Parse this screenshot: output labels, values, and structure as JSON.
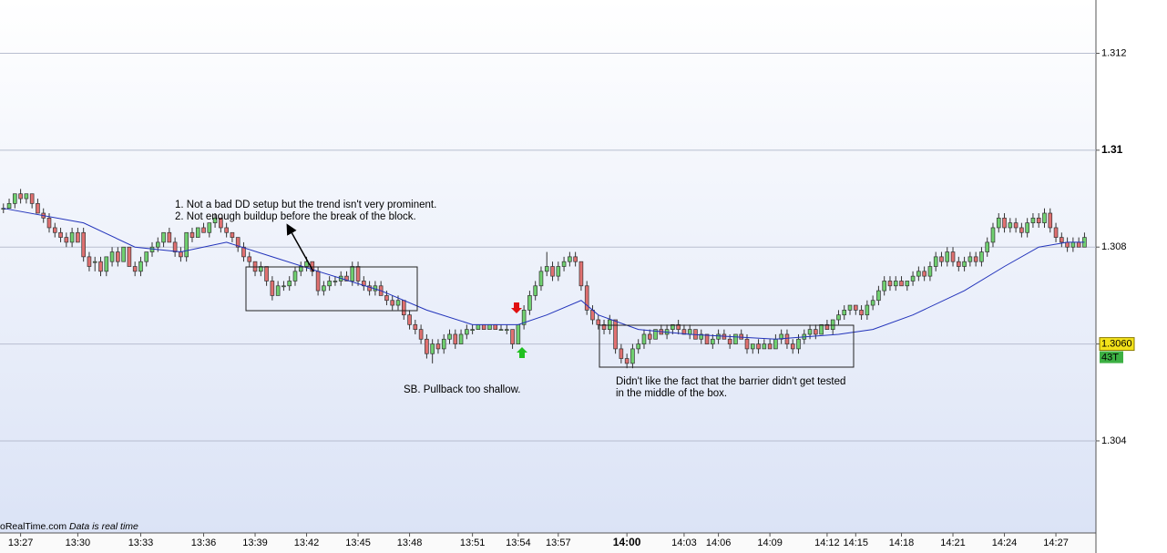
{
  "chart_data": {
    "type": "candlestick",
    "bar_type": "43T",
    "source": "oRealTime.com",
    "source_note": "Data is real time",
    "price_marker": {
      "value": 1.306,
      "label": "1.3060"
    },
    "annotations": [
      "1. Not a bad DD setup but the trend isn't very prominent.",
      "2. Not enough buildup before the break of the block.",
      "SB. Pullback too shallow.",
      "Didn't like the fact that the barrier didn't get tested",
      "in the middle of the box."
    ],
    "up_color": "#70d070",
    "down_color": "#e07070",
    "wick_color": "#333333",
    "xlim": [
      -0.6,
      191
    ],
    "ylim": [
      1.3021,
      1.3131
    ],
    "yticks": [
      1.304,
      1.306,
      1.308,
      1.31,
      1.312
    ],
    "grid": true,
    "xticks": [
      {
        "value": 3,
        "label": "13:27"
      },
      {
        "value": 13,
        "label": "13:30"
      },
      {
        "value": 24,
        "label": "13:33"
      },
      {
        "value": 35,
        "label": "13:36"
      },
      {
        "value": 44,
        "label": "13:39"
      },
      {
        "value": 53,
        "label": "13:42"
      },
      {
        "value": 62,
        "label": "13:45"
      },
      {
        "value": 71,
        "label": "13:48"
      },
      {
        "value": 82,
        "label": "13:51"
      },
      {
        "value": 90,
        "label": "13:54"
      },
      {
        "value": 97,
        "label": "13:57"
      },
      {
        "value": 109,
        "label": "14:00"
      },
      {
        "value": 119,
        "label": "14:03"
      },
      {
        "value": 125,
        "label": "14:06"
      },
      {
        "value": 134,
        "label": "14:09"
      },
      {
        "value": 144,
        "label": "14:12"
      },
      {
        "value": 149,
        "label": "14:15"
      },
      {
        "value": 157,
        "label": "14:18"
      },
      {
        "value": 166,
        "label": "14:21"
      },
      {
        "value": 175,
        "label": "14:24"
      },
      {
        "value": 184,
        "label": "14:27"
      }
    ],
    "ohlc": [
      [
        1.3088,
        1.3089,
        1.3087,
        1.3088
      ],
      [
        1.3088,
        1.309,
        1.3088,
        1.3089
      ],
      [
        1.3089,
        1.3091,
        1.3088,
        1.3091
      ],
      [
        1.3091,
        1.3092,
        1.3089,
        1.309
      ],
      [
        1.309,
        1.3091,
        1.3089,
        1.3091
      ],
      [
        1.3091,
        1.3091,
        1.3088,
        1.3089
      ],
      [
        1.3089,
        1.309,
        1.3087,
        1.3087
      ],
      [
        1.3087,
        1.3088,
        1.3085,
        1.3086
      ],
      [
        1.3086,
        1.3087,
        1.3083,
        1.3084
      ],
      [
        1.3084,
        1.3085,
        1.3082,
        1.3083
      ],
      [
        1.3083,
        1.3084,
        1.3081,
        1.3082
      ],
      [
        1.3082,
        1.3083,
        1.308,
        1.3081
      ],
      [
        1.3081,
        1.3084,
        1.308,
        1.3083
      ],
      [
        1.3083,
        1.3084,
        1.3081,
        1.3081
      ],
      [
        1.3083,
        1.3084,
        1.3077,
        1.3078
      ],
      [
        1.3078,
        1.3079,
        1.3075,
        1.3076
      ],
      [
        1.3077,
        1.3078,
        1.3075,
        1.3077
      ],
      [
        1.3077,
        1.3078,
        1.3074,
        1.3075
      ],
      [
        1.3075,
        1.3078,
        1.3074,
        1.3078
      ],
      [
        1.3077,
        1.308,
        1.3076,
        1.3079
      ],
      [
        1.3079,
        1.308,
        1.3076,
        1.3077
      ],
      [
        1.3077,
        1.308,
        1.3077,
        1.308
      ],
      [
        1.308,
        1.308,
        1.3076,
        1.3076
      ],
      [
        1.3076,
        1.3077,
        1.3074,
        1.3075
      ],
      [
        1.3075,
        1.3078,
        1.3074,
        1.3077
      ],
      [
        1.3077,
        1.3079,
        1.3076,
        1.3079
      ],
      [
        1.3079,
        1.3081,
        1.3078,
        1.308
      ],
      [
        1.308,
        1.3082,
        1.3079,
        1.3081
      ],
      [
        1.3081,
        1.3083,
        1.308,
        1.3083
      ],
      [
        1.3083,
        1.3084,
        1.3081,
        1.3081
      ],
      [
        1.3081,
        1.3082,
        1.3078,
        1.3079
      ],
      [
        1.3079,
        1.308,
        1.3077,
        1.3078
      ],
      [
        1.3078,
        1.3083,
        1.3077,
        1.3083
      ],
      [
        1.3083,
        1.3084,
        1.3081,
        1.3082
      ],
      [
        1.3082,
        1.3084,
        1.3082,
        1.3084
      ],
      [
        1.3084,
        1.3085,
        1.3083,
        1.3083
      ],
      [
        1.3083,
        1.3085,
        1.3082,
        1.3085
      ],
      [
        1.3085,
        1.3087,
        1.3084,
        1.3086
      ],
      [
        1.3086,
        1.3086,
        1.3083,
        1.3084
      ],
      [
        1.3084,
        1.3085,
        1.3082,
        1.3083
      ],
      [
        1.3083,
        1.3083,
        1.3081,
        1.3082
      ],
      [
        1.3082,
        1.3082,
        1.3079,
        1.308
      ],
      [
        1.308,
        1.3081,
        1.3077,
        1.3078
      ],
      [
        1.3078,
        1.3079,
        1.3076,
        1.3077
      ],
      [
        1.3077,
        1.3077,
        1.3074,
        1.3075
      ],
      [
        1.3075,
        1.3077,
        1.3074,
        1.3076
      ],
      [
        1.3076,
        1.3076,
        1.3072,
        1.3073
      ],
      [
        1.3073,
        1.3074,
        1.3069,
        1.307
      ],
      [
        1.307,
        1.3073,
        1.307,
        1.3072
      ],
      [
        1.3072,
        1.3073,
        1.3071,
        1.3072
      ],
      [
        1.3072,
        1.3074,
        1.3071,
        1.3073
      ],
      [
        1.3073,
        1.3076,
        1.3072,
        1.3075
      ],
      [
        1.3075,
        1.3077,
        1.3074,
        1.3076
      ],
      [
        1.3076,
        1.3078,
        1.3075,
        1.3077
      ],
      [
        1.3077,
        1.3077,
        1.3074,
        1.3075
      ],
      [
        1.3075,
        1.3076,
        1.307,
        1.3071
      ],
      [
        1.3071,
        1.3073,
        1.307,
        1.3072
      ],
      [
        1.3072,
        1.3074,
        1.3071,
        1.3073
      ],
      [
        1.3073,
        1.3074,
        1.3072,
        1.3073
      ],
      [
        1.3073,
        1.3075,
        1.3072,
        1.3074
      ],
      [
        1.3074,
        1.3075,
        1.3073,
        1.3073
      ],
      [
        1.3073,
        1.3077,
        1.3072,
        1.3076
      ],
      [
        1.3076,
        1.3077,
        1.3072,
        1.3073
      ],
      [
        1.3073,
        1.3074,
        1.3071,
        1.3072
      ],
      [
        1.3072,
        1.3073,
        1.307,
        1.3071
      ],
      [
        1.3071,
        1.3073,
        1.307,
        1.3072
      ],
      [
        1.3072,
        1.3073,
        1.307,
        1.307
      ],
      [
        1.307,
        1.3071,
        1.3068,
        1.3069
      ],
      [
        1.3069,
        1.307,
        1.3067,
        1.3068
      ],
      [
        1.3068,
        1.307,
        1.3067,
        1.3069
      ],
      [
        1.3069,
        1.3069,
        1.3065,
        1.3066
      ],
      [
        1.3066,
        1.3067,
        1.3063,
        1.3064
      ],
      [
        1.3064,
        1.3065,
        1.3062,
        1.3063
      ],
      [
        1.3063,
        1.3064,
        1.306,
        1.3061
      ],
      [
        1.3061,
        1.3062,
        1.3057,
        1.3058
      ],
      [
        1.3058,
        1.3061,
        1.3056,
        1.306
      ],
      [
        1.306,
        1.3061,
        1.3058,
        1.3059
      ],
      [
        1.3059,
        1.3062,
        1.3058,
        1.3061
      ],
      [
        1.3061,
        1.3063,
        1.306,
        1.3062
      ],
      [
        1.3062,
        1.3063,
        1.3059,
        1.306
      ],
      [
        1.306,
        1.3063,
        1.306,
        1.3062
      ],
      [
        1.3062,
        1.3064,
        1.3061,
        1.3063
      ],
      [
        1.3063,
        1.3064,
        1.3062,
        1.3063
      ],
      [
        1.3063,
        1.3064,
        1.3063,
        1.3064
      ],
      [
        1.3064,
        1.3064,
        1.3063,
        1.3063
      ],
      [
        1.3063,
        1.3064,
        1.3063,
        1.3064
      ],
      [
        1.3064,
        1.3064,
        1.3063,
        1.3063
      ],
      [
        1.3063,
        1.3064,
        1.3063,
        1.3063
      ],
      [
        1.3063,
        1.3064,
        1.3062,
        1.3063
      ],
      [
        1.3063,
        1.3063,
        1.3059,
        1.306
      ],
      [
        1.306,
        1.3064,
        1.306,
        1.3064
      ],
      [
        1.3064,
        1.3068,
        1.3063,
        1.3067
      ],
      [
        1.3067,
        1.3071,
        1.3066,
        1.307
      ],
      [
        1.307,
        1.3073,
        1.3069,
        1.3072
      ],
      [
        1.3072,
        1.3076,
        1.3071,
        1.3075
      ],
      [
        1.3075,
        1.3079,
        1.3074,
        1.3076
      ],
      [
        1.3076,
        1.3077,
        1.3073,
        1.3074
      ],
      [
        1.3074,
        1.3077,
        1.3073,
        1.3076
      ],
      [
        1.3076,
        1.3078,
        1.3075,
        1.3077
      ],
      [
        1.3077,
        1.3079,
        1.3076,
        1.3078
      ],
      [
        1.3078,
        1.3079,
        1.3076,
        1.3077
      ],
      [
        1.3077,
        1.3077,
        1.3071,
        1.3072
      ],
      [
        1.3072,
        1.3073,
        1.3066,
        1.3067
      ],
      [
        1.3067,
        1.3068,
        1.3064,
        1.3065
      ],
      [
        1.3065,
        1.3066,
        1.3063,
        1.3064
      ],
      [
        1.3064,
        1.3065,
        1.3062,
        1.3063
      ],
      [
        1.3063,
        1.3066,
        1.3062,
        1.3065
      ],
      [
        1.3065,
        1.3065,
        1.3058,
        1.3059
      ],
      [
        1.3059,
        1.306,
        1.3056,
        1.3057
      ],
      [
        1.3057,
        1.3058,
        1.3055,
        1.3056
      ],
      [
        1.3056,
        1.306,
        1.3055,
        1.3059
      ],
      [
        1.3059,
        1.3061,
        1.3058,
        1.306
      ],
      [
        1.306,
        1.3063,
        1.3059,
        1.3062
      ],
      [
        1.3062,
        1.3063,
        1.306,
        1.3061
      ],
      [
        1.3061,
        1.3063,
        1.3061,
        1.3063
      ],
      [
        1.3063,
        1.3064,
        1.3062,
        1.3062
      ],
      [
        1.3062,
        1.3064,
        1.3061,
        1.3063
      ],
      [
        1.3063,
        1.3064,
        1.3062,
        1.3064
      ],
      [
        1.3064,
        1.3065,
        1.3062,
        1.3063
      ],
      [
        1.3063,
        1.3064,
        1.3062,
        1.3062
      ],
      [
        1.3062,
        1.3064,
        1.3061,
        1.3063
      ],
      [
        1.3063,
        1.3063,
        1.3061,
        1.3061
      ],
      [
        1.3061,
        1.3063,
        1.306,
        1.3062
      ],
      [
        1.3062,
        1.3062,
        1.306,
        1.306
      ],
      [
        1.306,
        1.3062,
        1.3059,
        1.3061
      ],
      [
        1.3061,
        1.3063,
        1.306,
        1.3062
      ],
      [
        1.3062,
        1.3063,
        1.3061,
        1.3061
      ],
      [
        1.3061,
        1.3062,
        1.3059,
        1.306
      ],
      [
        1.306,
        1.3062,
        1.306,
        1.3062
      ],
      [
        1.3062,
        1.3063,
        1.3061,
        1.3061
      ],
      [
        1.3061,
        1.3062,
        1.3058,
        1.3059
      ],
      [
        1.3059,
        1.306,
        1.3058,
        1.306
      ],
      [
        1.306,
        1.3061,
        1.3058,
        1.3059
      ],
      [
        1.3059,
        1.3061,
        1.3059,
        1.306
      ],
      [
        1.306,
        1.3061,
        1.3059,
        1.3059
      ],
      [
        1.3059,
        1.3062,
        1.3059,
        1.3061
      ],
      [
        1.3061,
        1.3063,
        1.306,
        1.3062
      ],
      [
        1.3062,
        1.3063,
        1.3059,
        1.306
      ],
      [
        1.306,
        1.3061,
        1.3058,
        1.3059
      ],
      [
        1.3059,
        1.3062,
        1.3058,
        1.3061
      ],
      [
        1.3061,
        1.3063,
        1.306,
        1.3062
      ],
      [
        1.3062,
        1.3064,
        1.3061,
        1.3063
      ],
      [
        1.3063,
        1.3064,
        1.3061,
        1.3062
      ],
      [
        1.3062,
        1.3064,
        1.3062,
        1.3064
      ],
      [
        1.3064,
        1.3065,
        1.3063,
        1.3063
      ],
      [
        1.3063,
        1.3065,
        1.3062,
        1.3065
      ],
      [
        1.3065,
        1.3067,
        1.3064,
        1.3066
      ],
      [
        1.3066,
        1.3068,
        1.3065,
        1.3067
      ],
      [
        1.3067,
        1.3068,
        1.3066,
        1.3068
      ],
      [
        1.3068,
        1.3068,
        1.3066,
        1.3067
      ],
      [
        1.3067,
        1.3068,
        1.3065,
        1.3066
      ],
      [
        1.3066,
        1.3069,
        1.3065,
        1.3068
      ],
      [
        1.3068,
        1.307,
        1.3067,
        1.3069
      ],
      [
        1.3069,
        1.3072,
        1.3068,
        1.3071
      ],
      [
        1.3071,
        1.3074,
        1.307,
        1.3073
      ],
      [
        1.3073,
        1.3074,
        1.3071,
        1.3072
      ],
      [
        1.3072,
        1.3074,
        1.3071,
        1.3073
      ],
      [
        1.3073,
        1.3074,
        1.3072,
        1.3072
      ],
      [
        1.3072,
        1.3073,
        1.3071,
        1.3073
      ],
      [
        1.3073,
        1.3075,
        1.3072,
        1.3074
      ],
      [
        1.3074,
        1.3076,
        1.3073,
        1.3075
      ],
      [
        1.3075,
        1.3076,
        1.3073,
        1.3074
      ],
      [
        1.3074,
        1.3077,
        1.3073,
        1.3076
      ],
      [
        1.3076,
        1.3079,
        1.3075,
        1.3078
      ],
      [
        1.3078,
        1.3079,
        1.3076,
        1.3077
      ],
      [
        1.3077,
        1.308,
        1.3076,
        1.3079
      ],
      [
        1.3079,
        1.308,
        1.3076,
        1.3077
      ],
      [
        1.3077,
        1.3078,
        1.3075,
        1.3076
      ],
      [
        1.3076,
        1.3078,
        1.3075,
        1.3077
      ],
      [
        1.3077,
        1.3079,
        1.3076,
        1.3078
      ],
      [
        1.3078,
        1.3079,
        1.3076,
        1.3077
      ],
      [
        1.3077,
        1.308,
        1.3076,
        1.3079
      ],
      [
        1.3079,
        1.3082,
        1.3078,
        1.3081
      ],
      [
        1.3081,
        1.3085,
        1.308,
        1.3084
      ],
      [
        1.3084,
        1.3087,
        1.3083,
        1.3086
      ],
      [
        1.3086,
        1.3087,
        1.3083,
        1.3084
      ],
      [
        1.3084,
        1.3086,
        1.3083,
        1.3085
      ],
      [
        1.3085,
        1.3086,
        1.3083,
        1.3084
      ],
      [
        1.3084,
        1.3085,
        1.3082,
        1.3083
      ],
      [
        1.3083,
        1.3086,
        1.3082,
        1.3085
      ],
      [
        1.3085,
        1.3087,
        1.3084,
        1.3086
      ],
      [
        1.3086,
        1.3087,
        1.3084,
        1.3085
      ],
      [
        1.3085,
        1.3088,
        1.3084,
        1.3087
      ],
      [
        1.3087,
        1.3088,
        1.3083,
        1.3084
      ],
      [
        1.3084,
        1.3085,
        1.3081,
        1.3082
      ],
      [
        1.3082,
        1.3083,
        1.308,
        1.3081
      ],
      [
        1.3081,
        1.3082,
        1.3079,
        1.308
      ],
      [
        1.308,
        1.3082,
        1.3079,
        1.3081
      ],
      [
        1.3081,
        1.3082,
        1.308,
        1.308
      ],
      [
        1.308,
        1.3083,
        1.308,
        1.3082
      ]
    ],
    "overlay": {
      "color": "#2233bb",
      "x": [
        0,
        14,
        23,
        31,
        39,
        47,
        55,
        66,
        74,
        82,
        90,
        95,
        101,
        104,
        111,
        120,
        135,
        146,
        152,
        159,
        168,
        175,
        181,
        186,
        189
      ],
      "values": [
        1.3088,
        1.3085,
        1.308,
        1.3079,
        1.3081,
        1.3078,
        1.3075,
        1.3071,
        1.3067,
        1.3064,
        1.3064,
        1.3066,
        1.3069,
        1.3066,
        1.3063,
        1.3062,
        1.3061,
        1.3062,
        1.3063,
        1.3066,
        1.3071,
        1.3076,
        1.308,
        1.3081,
        1.3081
      ]
    }
  }
}
